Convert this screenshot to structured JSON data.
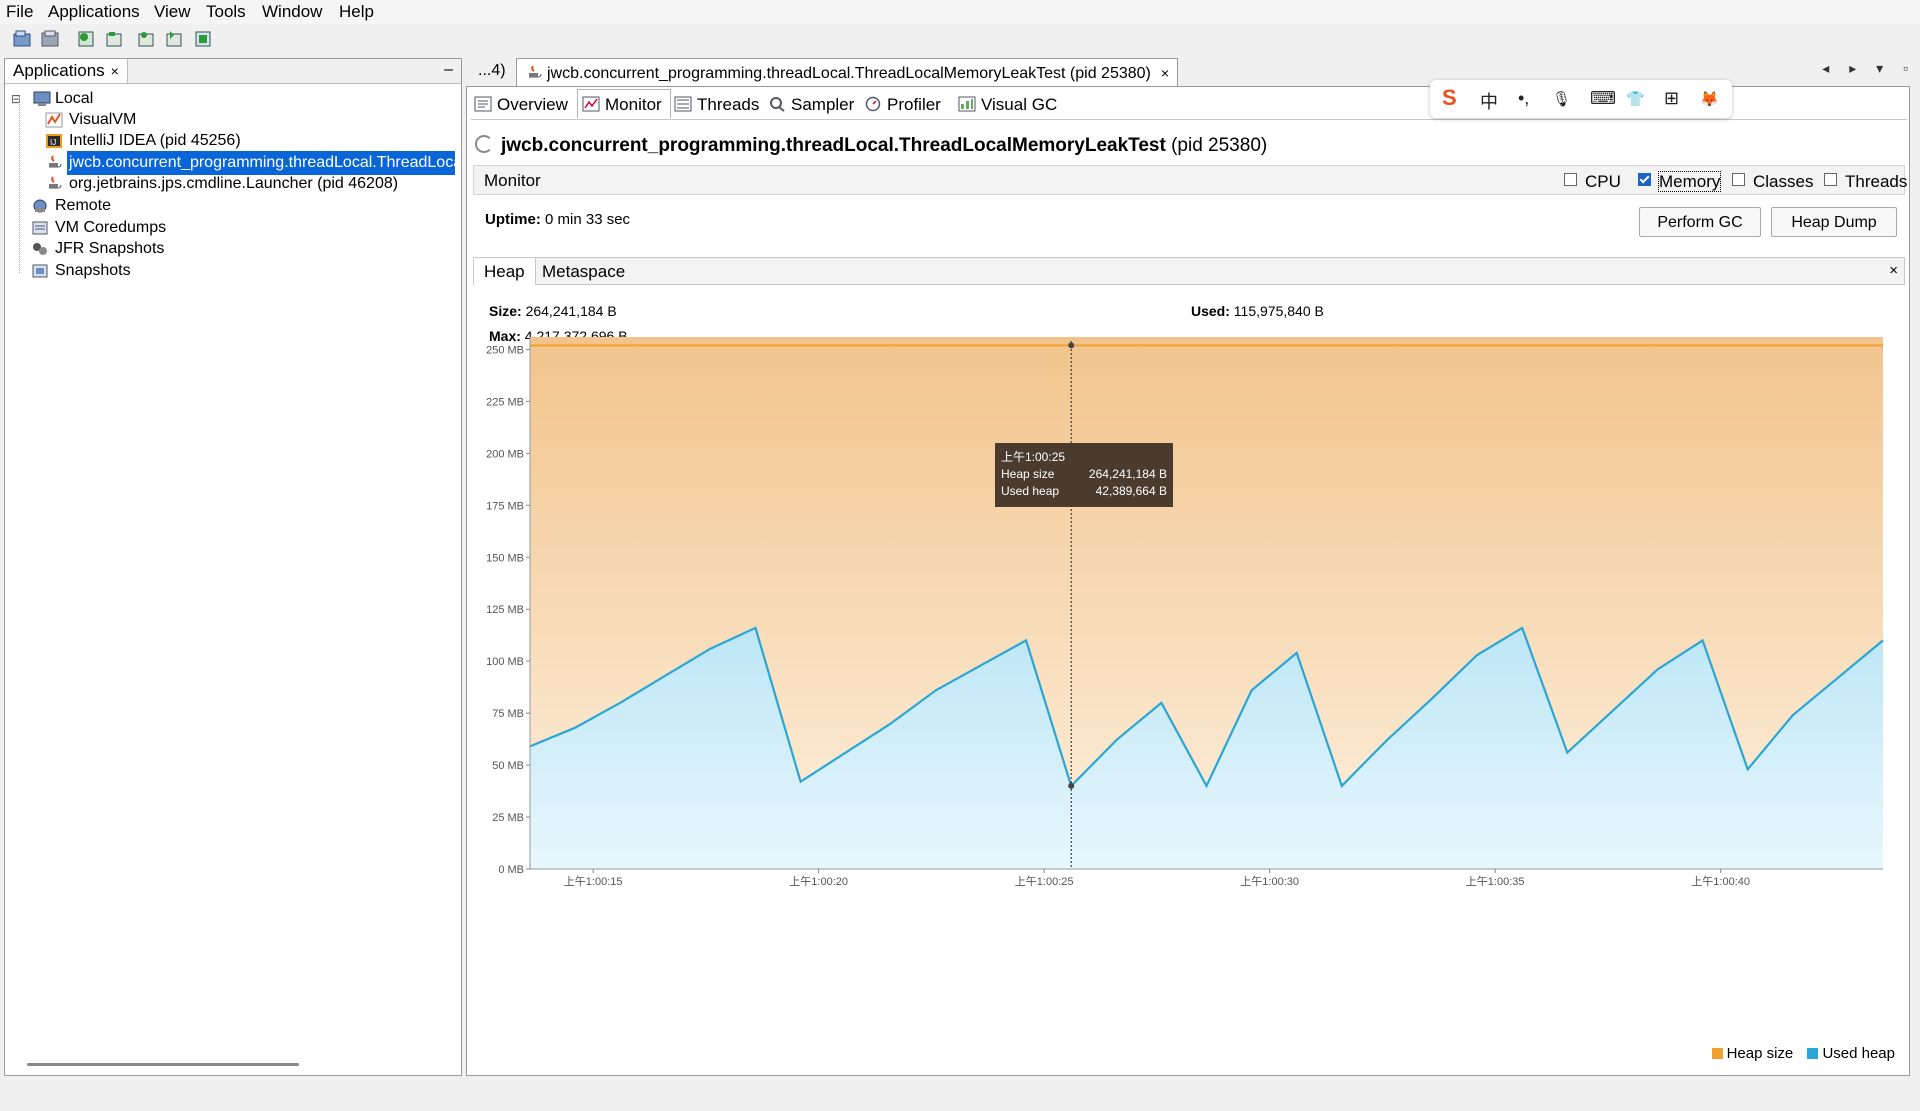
{
  "menu": [
    "File",
    "Applications",
    "View",
    "Tools",
    "Window",
    "Help"
  ],
  "toolbar_icons": [
    "open-icon",
    "save-icon",
    "add-jmx-icon",
    "add-host-icon",
    "add-coredump-icon",
    "add-snapshot-icon",
    "compare-icon"
  ],
  "left_panel": {
    "tab_label": "Applications",
    "close_glyph": "×",
    "minimize_glyph": "–",
    "tree": [
      {
        "label": "Local",
        "icon": "computer-icon"
      },
      {
        "label": "VisualVM",
        "icon": "visualvm-icon"
      },
      {
        "label": "IntelliJ IDEA (pid 45256)",
        "icon": "intellij-icon"
      },
      {
        "label": "jwcb.concurrent_programming.threadLocal.ThreadLocalMemoryLeakTest",
        "icon": "java-icon"
      },
      {
        "label": "org.jetbrains.jps.cmdline.Launcher (pid 46208)",
        "icon": "java-icon"
      },
      {
        "label": "Remote",
        "icon": "remote-icon"
      },
      {
        "label": "VM Coredumps",
        "icon": "coredump-icon"
      },
      {
        "label": "JFR Snapshots",
        "icon": "jfr-icon"
      },
      {
        "label": "Snapshots",
        "icon": "snapshot-icon"
      }
    ]
  },
  "doc_tabs": {
    "prev_label": "...4)",
    "main_label": "jwcb.concurrent_programming.threadLocal.ThreadLocalMemoryLeakTest (pid 25380)",
    "close_glyph": "×",
    "nav": "◂ ▸ ▾ ▫"
  },
  "sub_tabs": [
    "Overview",
    "Monitor",
    "Threads",
    "Sampler",
    "Profiler",
    "Visual GC"
  ],
  "ime_bar": [
    "S",
    "中",
    "•,",
    "🎙",
    "⌨",
    "👕",
    "⊞",
    "🦊"
  ],
  "title": {
    "bold": "jwcb.concurrent_programming.threadLocal.ThreadLocalMemoryLeakTest",
    "rest": " (pid 25380)"
  },
  "monitor": {
    "label": "Monitor",
    "checks": [
      {
        "label": "CPU",
        "checked": false
      },
      {
        "label": "Memory",
        "checked": true
      },
      {
        "label": "Classes",
        "checked": false
      },
      {
        "label": "Threads",
        "checked": false
      }
    ],
    "uptime_label": "Uptime:",
    "uptime_value": " 0 min 33 sec",
    "perform_gc": "Perform GC",
    "heap_dump": "Heap Dump"
  },
  "heap": {
    "tabs": [
      "Heap",
      "Metaspace"
    ],
    "close_glyph": "×",
    "size_label": "Size:",
    "size_value": " 264,241,184 B",
    "max_label": "Max:",
    "max_value": " 4,217,372,696 B",
    "used_label": "Used:",
    "used_value": " 115,975,840 B"
  },
  "tooltip": {
    "time": "上午1:00:25",
    "heap_size_label": "Heap size",
    "heap_size_value": "264,241,184 B",
    "used_heap_label": "Used heap",
    "used_heap_value": "42,389,664 B"
  },
  "legend": {
    "heap": "Heap size",
    "used": "Used heap"
  },
  "colors": {
    "heap": "#f0a030",
    "used": "#2aa6d6",
    "selection": "#0a66d8"
  },
  "chart_data": {
    "type": "area",
    "x_ticks": [
      "上午1:00:15",
      "上午1:00:20",
      "上午1:00:25",
      "上午1:00:30",
      "上午1:00:35",
      "上午1:00:40"
    ],
    "y_ticks": [
      "0 MB",
      "25 MB",
      "50 MB",
      "75 MB",
      "100 MB",
      "125 MB",
      "150 MB",
      "175 MB",
      "200 MB",
      "225 MB",
      "250 MB"
    ],
    "ylim": [
      0,
      256
    ],
    "xlim": [
      13.6,
      43.6
    ],
    "series": [
      {
        "name": "Heap size",
        "x": [
          13.6,
          43.6
        ],
        "values": [
          252,
          252
        ]
      },
      {
        "name": "Used heap",
        "x": [
          13.6,
          14.6,
          15.6,
          16.6,
          17.6,
          18.6,
          19.6,
          20.6,
          21.6,
          22.6,
          23.6,
          24.6,
          25.6,
          26.6,
          27.6,
          28.6,
          29.6,
          30.6,
          31.6,
          32.6,
          33.6,
          34.6,
          35.6,
          36.6,
          37.6,
          38.6,
          39.6,
          40.6,
          41.6,
          42.6,
          43.6
        ],
        "values": [
          59,
          68,
          80,
          93,
          106,
          116,
          42,
          56,
          70,
          86,
          98,
          110,
          40,
          62,
          80,
          40,
          86,
          104,
          40,
          62,
          82,
          103,
          116,
          56,
          76,
          96,
          110,
          48,
          74,
          92,
          110
        ]
      }
    ],
    "crosshair_x": 25.6
  }
}
